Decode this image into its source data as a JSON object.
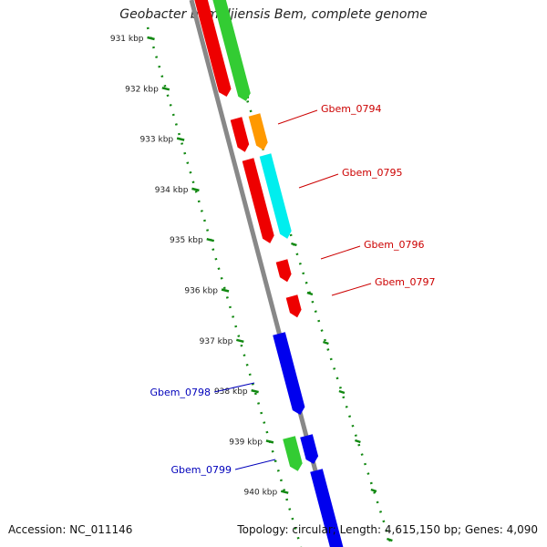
{
  "title": "Geobacter bemidjiensis Bem, complete genome",
  "footer": {
    "accession": "Accession: NC_011146",
    "summary": "Topology: circular; Length: 4,615,150 bp; Genes: 4,090"
  },
  "colors": {
    "backbone": "#888888",
    "tick_ring": "#118811",
    "label_red": "#cc0000",
    "label_blue": "#0000bb"
  },
  "ticks": [
    {
      "kbp": 931,
      "label": "931 kbp"
    },
    {
      "kbp": 932,
      "label": "932 kbp"
    },
    {
      "kbp": 933,
      "label": "933 kbp"
    },
    {
      "kbp": 934,
      "label": "934 kbp"
    },
    {
      "kbp": 935,
      "label": "935 kbp"
    },
    {
      "kbp": 936,
      "label": "936 kbp"
    },
    {
      "kbp": 937,
      "label": "937 kbp"
    },
    {
      "kbp": 938,
      "label": "938 kbp"
    },
    {
      "kbp": 939,
      "label": "939 kbp"
    },
    {
      "kbp": 940,
      "label": "940 kbp"
    }
  ],
  "gene_labels": [
    {
      "name": "Gbem_0794",
      "color": "#cc0000"
    },
    {
      "name": "Gbem_0795",
      "color": "#cc0000"
    },
    {
      "name": "Gbem_0796",
      "color": "#cc0000"
    },
    {
      "name": "Gbem_0797",
      "color": "#cc0000"
    },
    {
      "name": "Gbem_0798",
      "color": "#0000bb"
    },
    {
      "name": "Gbem_0799",
      "color": "#0000bb"
    }
  ]
}
